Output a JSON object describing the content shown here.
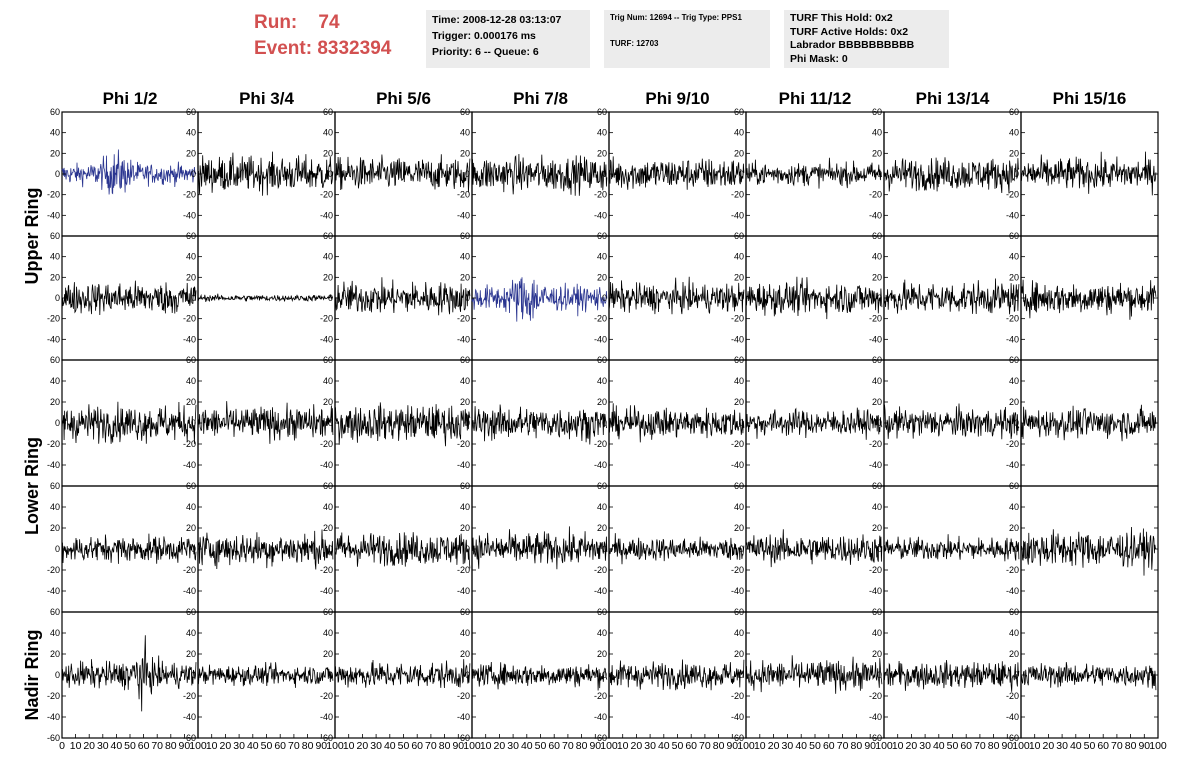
{
  "header": {
    "run_label": "Run:",
    "run_value": "74",
    "event_label": "Event:",
    "event_value": "8332394",
    "time_box": [
      "Time: 2008-12-28 03:13:07",
      "Trigger: 0.000176 ms",
      "Priority: 6 -- Queue: 6"
    ],
    "trig_box": [
      "Trig Num: 12694 -- Trig Type: PPS1",
      "TURF: 12703"
    ],
    "turf_box": [
      "TURF This Hold: 0x2",
      "TURF Active Holds: 0x2",
      "Labrador BBBBBBBBBB",
      "Phi Mask: 0"
    ]
  },
  "colors": {
    "accent": "#d25050",
    "trigger_trace": "#2a3590",
    "trace": "#000000",
    "box_bg": "#ececec"
  },
  "chart_data": {
    "type": "line",
    "columns": [
      "Phi 1/2",
      "Phi 3/4",
      "Phi 5/6",
      "Phi 7/8",
      "Phi 9/10",
      "Phi 11/12",
      "Phi 13/14",
      "Phi 15/16"
    ],
    "rows": [
      "Upper Ring",
      "Upper Ring",
      "Lower Ring",
      "Lower Ring",
      "Nadir Ring"
    ],
    "row_labels": [
      {
        "text": "Upper Ring",
        "spans_rows": [
          0,
          1
        ]
      },
      {
        "text": "Lower Ring",
        "spans_rows": [
          2,
          3
        ]
      },
      {
        "text": "Nadir Ring",
        "spans_rows": [
          4
        ]
      }
    ],
    "y_ticks_left": [
      "60",
      "40",
      "20",
      "0",
      "-20",
      "-40"
    ],
    "y_ticks_right": [
      "60",
      "40",
      "20",
      "0",
      "-20",
      "-40"
    ],
    "y_ticks_bottom_row": [
      "60",
      "40",
      "20",
      "0",
      "-20",
      "-40",
      "-60"
    ],
    "x_ticks": [
      "0",
      "10",
      "20",
      "30",
      "40",
      "50",
      "60",
      "70",
      "80",
      "90",
      "100"
    ],
    "ylim": [
      -60,
      60
    ],
    "xlim": [
      0,
      100
    ],
    "highlighted_panels": [
      [
        0,
        0
      ],
      [
        1,
        3
      ]
    ],
    "panel_amplitude": [
      [
        18,
        22,
        20,
        22,
        20,
        14,
        20,
        20
      ],
      [
        20,
        4,
        20,
        22,
        18,
        20,
        20,
        20
      ],
      [
        22,
        20,
        22,
        20,
        18,
        16,
        18,
        18
      ],
      [
        16,
        20,
        20,
        20,
        14,
        18,
        14,
        22
      ],
      [
        20,
        12,
        16,
        14,
        16,
        18,
        16,
        14
      ]
    ],
    "x_samples": 260
  }
}
